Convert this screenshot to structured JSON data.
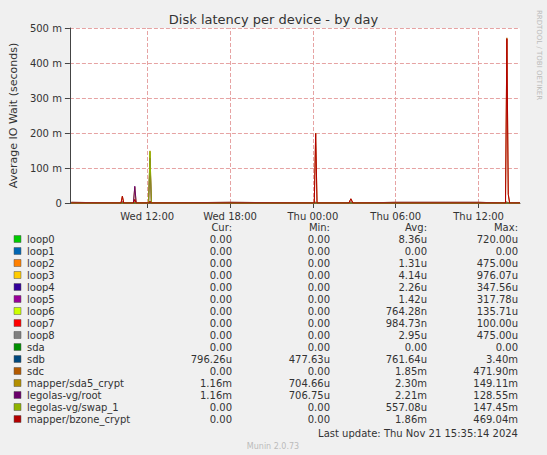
{
  "chart_data": {
    "type": "line",
    "title": "Disk latency per device - by day",
    "y_label": "Average IO Wait (seconds)",
    "x": [
      6.5,
      10.1,
      10.2,
      10.3,
      11.0,
      11.1,
      11.2,
      12.1,
      12.2,
      12.3,
      18,
      24.1,
      24.2,
      24.3,
      26.6,
      26.75,
      26.9,
      30,
      36,
      37.95,
      38.05,
      38.15,
      38.25,
      39
    ],
    "xlim": [
      6.4,
      39
    ],
    "xticks": [
      {
        "value": 12,
        "label": "Wed 12:00"
      },
      {
        "value": 18,
        "label": "Wed 18:00"
      },
      {
        "value": 24,
        "label": "Thu 00:00"
      },
      {
        "value": 30,
        "label": "Thu 06:00"
      },
      {
        "value": 36,
        "label": "Thu 12:00"
      }
    ],
    "ylim": [
      0,
      0.5
    ],
    "yticks": [
      0,
      {
        "value": 0.1,
        "label": "100 m"
      },
      {
        "value": 0.2,
        "label": "200 m"
      },
      {
        "value": 0.3,
        "label": "300 m"
      },
      {
        "value": 0.4,
        "label": "400 m"
      },
      {
        "value": 0.5,
        "label": "500 m"
      }
    ],
    "grid": true,
    "legend": "bottom",
    "legend_columns": [
      "Cur:",
      "Min:",
      "Avg:",
      "Max:"
    ],
    "annotations": [
      "Last update: Thu Nov 21 15:35:14 2024",
      "Munin 2.0.73",
      "RRDTOOL / TOBI OETIKER"
    ],
    "series": [
      {
        "name": "loop0",
        "color": "#00cc00",
        "stats": [
          "0.00",
          "0.00",
          "8.36u",
          "720.00u"
        ],
        "values": [
          0,
          0,
          0,
          0,
          0,
          0,
          0,
          0,
          0,
          0,
          0,
          0,
          0,
          0,
          0,
          0,
          0,
          0,
          0,
          0,
          0,
          0,
          0,
          0
        ]
      },
      {
        "name": "loop1",
        "color": "#0066b3",
        "stats": [
          "0.00",
          "0.00",
          "0.00",
          "0.00"
        ],
        "values": [
          0,
          0,
          0,
          0,
          0,
          0,
          0,
          0,
          0,
          0,
          0,
          0,
          0,
          0,
          0,
          0,
          0,
          0,
          0,
          0,
          0,
          0,
          0,
          0
        ]
      },
      {
        "name": "loop2",
        "color": "#ff8000",
        "stats": [
          "0.00",
          "0.00",
          "1.31u",
          "475.00u"
        ],
        "values": [
          0,
          0,
          0,
          0,
          0,
          0,
          0,
          0,
          0,
          0,
          0,
          0,
          0,
          0,
          0,
          0,
          0,
          0,
          0,
          0,
          0,
          0,
          0,
          0
        ]
      },
      {
        "name": "loop3",
        "color": "#ffcc00",
        "stats": [
          "0.00",
          "0.00",
          "4.14u",
          "976.07u"
        ],
        "values": [
          0,
          0,
          0,
          0,
          0,
          0,
          0,
          0,
          0,
          0,
          0,
          0,
          0,
          0,
          0,
          0,
          0,
          0,
          0,
          0,
          0,
          0,
          0,
          0
        ]
      },
      {
        "name": "loop4",
        "color": "#330099",
        "stats": [
          "0.00",
          "0.00",
          "2.26u",
          "347.56u"
        ],
        "values": [
          0,
          0,
          0,
          0,
          0,
          0,
          0,
          0,
          0,
          0,
          0,
          0,
          0,
          0,
          0,
          0,
          0,
          0,
          0,
          0,
          0,
          0,
          0,
          0
        ]
      },
      {
        "name": "loop5",
        "color": "#990099",
        "stats": [
          "0.00",
          "0.00",
          "1.42u",
          "317.78u"
        ],
        "values": [
          0,
          0,
          0,
          0,
          0,
          0,
          0,
          0,
          0,
          0,
          0,
          0,
          0,
          0,
          0,
          0,
          0,
          0,
          0,
          0,
          0,
          0,
          0,
          0
        ]
      },
      {
        "name": "loop6",
        "color": "#ccff00",
        "stats": [
          "0.00",
          "0.00",
          "764.28n",
          "135.71u"
        ],
        "values": [
          0,
          0,
          0,
          0,
          0,
          0,
          0,
          0,
          0,
          0,
          0,
          0,
          0,
          0,
          0,
          0,
          0,
          0,
          0,
          0,
          0,
          0,
          0,
          0
        ]
      },
      {
        "name": "loop7",
        "color": "#ff0000",
        "stats": [
          "0.00",
          "0.00",
          "984.73n",
          "100.00u"
        ],
        "values": [
          0,
          0,
          0,
          0,
          0,
          0,
          0,
          0,
          0,
          0,
          0,
          0,
          0,
          0,
          0,
          0,
          0,
          0,
          0,
          0,
          0,
          0,
          0,
          0
        ]
      },
      {
        "name": "loop8",
        "color": "#808080",
        "stats": [
          "0.00",
          "0.00",
          "2.95u",
          "475.00u"
        ],
        "values": [
          0,
          0,
          0,
          0,
          0,
          0,
          0,
          0,
          0,
          0,
          0,
          0,
          0,
          0,
          0,
          0,
          0,
          0,
          0,
          0,
          0,
          0,
          0,
          0
        ]
      },
      {
        "name": "sda",
        "color": "#008f00",
        "stats": [
          "0.00",
          "0.00",
          "0.00",
          "0.00"
        ],
        "values": [
          0,
          0,
          0,
          0,
          0,
          0,
          0,
          0,
          0,
          0,
          0,
          0,
          0,
          0,
          0,
          0,
          0,
          0,
          0,
          0,
          0,
          0,
          0,
          0
        ]
      },
      {
        "name": "sdb",
        "color": "#00487d",
        "stats": [
          "796.26u",
          "477.63u",
          "761.64u",
          "3.40m"
        ],
        "values": [
          0.00076,
          0.00076,
          0.00076,
          0.00076,
          0.00076,
          0.00076,
          0.00076,
          0.00076,
          0.00076,
          0.00076,
          0.00076,
          0.00076,
          0.00076,
          0.00076,
          0.00076,
          0.00076,
          0.00076,
          0.00076,
          0.00076,
          0.00076,
          0.00076,
          0.00076,
          0.00076,
          0.0008
        ]
      },
      {
        "name": "sdc",
        "color": "#b35a00",
        "stats": [
          "0.00",
          "0.00",
          "1.85m",
          "471.90m"
        ],
        "values": [
          0,
          0,
          0.02,
          0,
          0,
          0.01,
          0,
          0,
          0.005,
          0,
          0,
          0,
          0.2,
          0,
          0,
          0.012,
          0,
          0,
          0,
          0,
          0.4719,
          0.025,
          0,
          0
        ]
      },
      {
        "name": "mapper/sda5_crypt",
        "color": "#b38f00",
        "stats": [
          "1.16m",
          "704.66u",
          "2.30m",
          "149.11m"
        ],
        "values": [
          0.002,
          0,
          0.003,
          0,
          0,
          0.045,
          0,
          0,
          0.149,
          0,
          0.002,
          0,
          0.002,
          0,
          0,
          0.003,
          0,
          0.002,
          0.002,
          0,
          0.003,
          0,
          0,
          0.001
        ]
      },
      {
        "name": "legolas-vg/root",
        "color": "#6b006b",
        "stats": [
          "1.16m",
          "706.75u",
          "2.21m",
          "128.55m"
        ],
        "values": [
          0.002,
          0,
          0.003,
          0,
          0,
          0.048,
          0,
          0,
          0.128,
          0,
          0.002,
          0,
          0.002,
          0,
          0,
          0.003,
          0,
          0.002,
          0.002,
          0,
          0.003,
          0,
          0,
          0.001
        ]
      },
      {
        "name": "legolas-vg/swap_1",
        "color": "#8fb300",
        "stats": [
          "0.00",
          "0.00",
          "557.08u",
          "147.45m"
        ],
        "values": [
          0,
          0,
          0,
          0,
          0,
          0,
          0,
          0,
          0.147,
          0,
          0,
          0,
          0,
          0,
          0,
          0,
          0,
          0,
          0,
          0,
          0,
          0,
          0,
          0
        ]
      },
      {
        "name": "mapper/bzone_crypt",
        "color": "#b30000",
        "stats": [
          "0.00",
          "0.00",
          "1.86m",
          "469.04m"
        ],
        "values": [
          0,
          0,
          0.019,
          0,
          0,
          0.01,
          0,
          0,
          0.005,
          0,
          0,
          0,
          0.198,
          0,
          0,
          0.012,
          0,
          0,
          0,
          0,
          0.469,
          0.025,
          0,
          0
        ]
      }
    ]
  }
}
